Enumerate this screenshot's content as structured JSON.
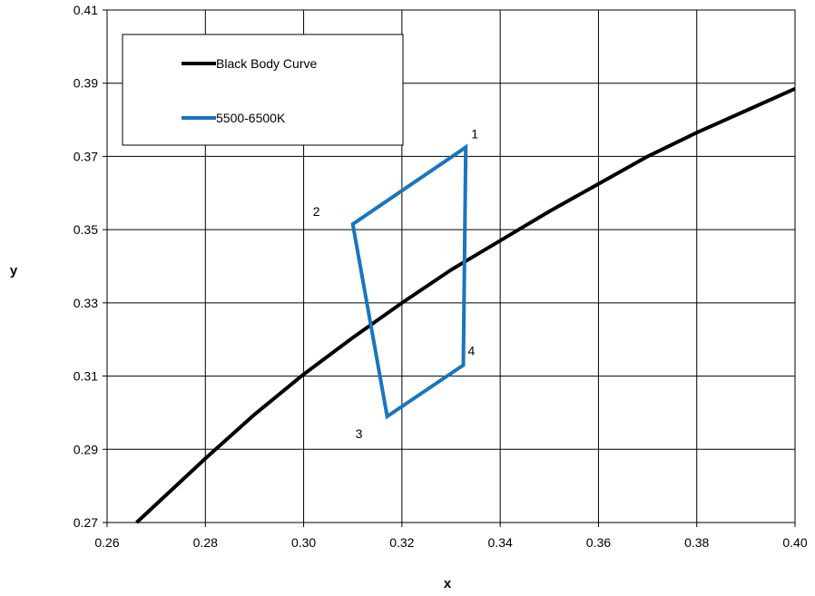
{
  "chart_data": {
    "type": "line",
    "xlabel": "x",
    "ylabel": "y",
    "xlim": [
      0.26,
      0.4
    ],
    "ylim": [
      0.27,
      0.41
    ],
    "x_ticks": [
      "0.26",
      "0.28",
      "0.30",
      "0.32",
      "0.34",
      "0.36",
      "0.38",
      "0.40"
    ],
    "y_ticks": [
      "0.27",
      "0.29",
      "0.31",
      "0.33",
      "0.35",
      "0.37",
      "0.39",
      "0.41"
    ],
    "grid": true,
    "legend_position": "top-left",
    "series": [
      {
        "name": "Black Body Curve",
        "color": "#000000",
        "points": [
          {
            "x": 0.266,
            "y": 0.27
          },
          {
            "x": 0.28,
            "y": 0.2875
          },
          {
            "x": 0.29,
            "y": 0.2995
          },
          {
            "x": 0.3,
            "y": 0.3105
          },
          {
            "x": 0.31,
            "y": 0.3205
          },
          {
            "x": 0.32,
            "y": 0.33
          },
          {
            "x": 0.33,
            "y": 0.339
          },
          {
            "x": 0.34,
            "y": 0.347
          },
          {
            "x": 0.35,
            "y": 0.355
          },
          {
            "x": 0.36,
            "y": 0.3625
          },
          {
            "x": 0.37,
            "y": 0.37
          },
          {
            "x": 0.38,
            "y": 0.3765
          },
          {
            "x": 0.39,
            "y": 0.3825
          },
          {
            "x": 0.4,
            "y": 0.3885
          }
        ]
      },
      {
        "name": "5500-6500K",
        "color": "#1a75bc",
        "closed": true,
        "points": [
          {
            "x": 0.333,
            "y": 0.3725,
            "label": "1"
          },
          {
            "x": 0.31,
            "y": 0.3515,
            "label": "2"
          },
          {
            "x": 0.317,
            "y": 0.299,
            "label": "3"
          },
          {
            "x": 0.3325,
            "y": 0.313,
            "label": "4"
          }
        ]
      }
    ]
  }
}
